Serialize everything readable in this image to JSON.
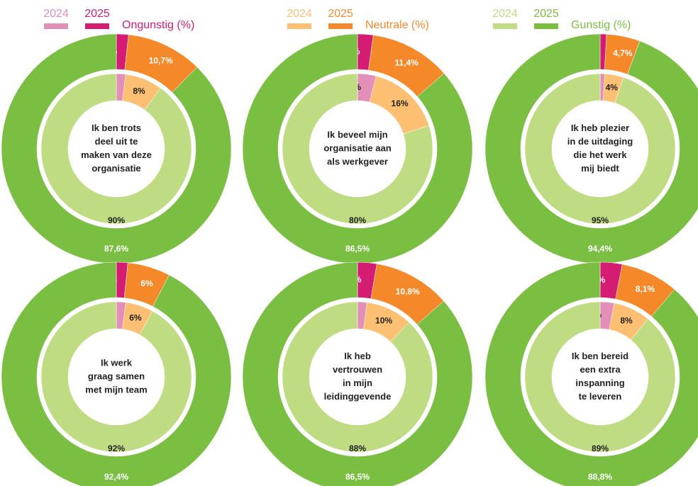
{
  "legend": [
    {
      "label": "Ongunstig (%)",
      "entries": [
        {
          "name": "2024",
          "color": "#e38fb8"
        },
        {
          "name": "2025",
          "color": "#d41c73"
        }
      ]
    },
    {
      "label": "Neutrale (%)",
      "entries": [
        {
          "name": "2024",
          "color": "#fdbf72"
        },
        {
          "name": "2025",
          "color": "#f5892a"
        }
      ]
    },
    {
      "label": "Gunstig (%)",
      "entries": [
        {
          "name": "2024",
          "color": "#c0dc82"
        },
        {
          "name": "2025",
          "color": "#7abf42"
        }
      ]
    }
  ],
  "chart_data": [
    {
      "type": "donut",
      "title": [
        "Ik ben trots",
        "deel uit te",
        "maken van deze",
        "organisatie"
      ],
      "series": [
        {
          "name": "2024",
          "colors": [
            "#e38fb8",
            "#fdbf72",
            "#c0dc82"
          ],
          "values": [
            2,
            8,
            90
          ],
          "value_labels": [
            "2%",
            "8%",
            "90%"
          ]
        },
        {
          "name": "2025",
          "colors": [
            "#d41c73",
            "#f5892a",
            "#7abf42"
          ],
          "values": [
            1.7,
            10.7,
            87.6
          ],
          "value_labels": [
            "1,7 %",
            "10,7%",
            "87,6%"
          ]
        }
      ]
    },
    {
      "type": "donut",
      "title": [
        "Ik beveel mijn",
        "organisatie aan",
        "als werkgever"
      ],
      "series": [
        {
          "name": "2024",
          "colors": [
            "#e38fb8",
            "#fdbf72",
            "#c0dc82"
          ],
          "values": [
            4,
            16,
            80
          ],
          "value_labels": [
            "4%",
            "16%",
            "80%"
          ]
        },
        {
          "name": "2025",
          "colors": [
            "#d41c73",
            "#f5892a",
            "#7abf42"
          ],
          "values": [
            2.2,
            11.4,
            86.5
          ],
          "value_labels": [
            "2,2%",
            "11,4%",
            "86,5%"
          ]
        }
      ]
    },
    {
      "type": "donut",
      "title": [
        "Ik heb plezier",
        "in de uitdaging",
        "die het werk",
        "mij biedt"
      ],
      "series": [
        {
          "name": "2024",
          "colors": [
            "#e38fb8",
            "#fdbf72",
            "#c0dc82"
          ],
          "values": [
            1,
            4,
            95
          ],
          "value_labels": [
            "1%",
            "4%",
            "95%"
          ]
        },
        {
          "name": "2025",
          "colors": [
            "#d41c73",
            "#f5892a",
            "#7abf42"
          ],
          "values": [
            0.9,
            4.7,
            94.4
          ],
          "value_labels": [
            "0,9%",
            "4,7%",
            "94,4%"
          ]
        }
      ]
    },
    {
      "type": "donut",
      "title": [
        "Ik werk",
        "graag samen",
        "met mijn team"
      ],
      "series": [
        {
          "name": "2024",
          "colors": [
            "#e38fb8",
            "#fdbf72",
            "#c0dc82"
          ],
          "values": [
            2,
            6,
            92
          ],
          "value_labels": [
            "2%",
            "6%",
            "92%"
          ]
        },
        {
          "name": "2025",
          "colors": [
            "#d41c73",
            "#f5892a",
            "#7abf42"
          ],
          "values": [
            1.6,
            6,
            92.4
          ],
          "value_labels": [
            "1,6%",
            "6%",
            "92,4%"
          ]
        }
      ]
    },
    {
      "type": "donut",
      "title": [
        "Ik heb",
        "vertrouwen",
        "in mijn",
        "leidinggevende"
      ],
      "series": [
        {
          "name": "2024",
          "colors": [
            "#e38fb8",
            "#fdbf72",
            "#c0dc82"
          ],
          "values": [
            2,
            10,
            88
          ],
          "value_labels": [
            "2%",
            "10%",
            "88%"
          ]
        },
        {
          "name": "2025",
          "colors": [
            "#d41c73",
            "#f5892a",
            "#7abf42"
          ],
          "values": [
            2.7,
            10.8,
            86.5
          ],
          "value_labels": [
            "2,7%",
            "10,8%",
            "86,5%"
          ]
        }
      ]
    },
    {
      "type": "donut",
      "title": [
        "Ik ben bereid",
        "een extra",
        "inspanning",
        "te leveren"
      ],
      "series": [
        {
          "name": "2024",
          "colors": [
            "#e38fb8",
            "#fdbf72",
            "#c0dc82"
          ],
          "values": [
            3,
            8,
            89
          ],
          "value_labels": [
            "3%",
            "8%",
            "89%"
          ]
        },
        {
          "name": "2025",
          "colors": [
            "#d41c73",
            "#f5892a",
            "#7abf42"
          ],
          "values": [
            3.1,
            8.1,
            88.8
          ],
          "value_labels": [
            "3,1%",
            "8,1%",
            "88,8%"
          ]
        }
      ]
    }
  ]
}
